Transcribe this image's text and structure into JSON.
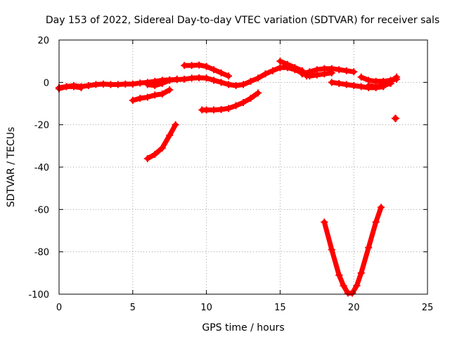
{
  "chart_data": {
    "type": "scatter",
    "title": "Day 153 of 2022, Sidereal Day-to-day VTEC variation (SDTVAR) for receiver sals",
    "xlabel": "GPS time / hours",
    "ylabel": "SDTVAR / TECUs",
    "xlim": [
      0,
      25
    ],
    "ylim": [
      -100,
      20
    ],
    "xticks": [
      0,
      5,
      10,
      15,
      20,
      25
    ],
    "yticks": [
      -100,
      -80,
      -60,
      -40,
      -20,
      0,
      20
    ],
    "grid": true,
    "marker": "plus",
    "color": "#ff0000",
    "series": [
      {
        "points": [
          [
            0,
            -2.5
          ],
          [
            0.5,
            -2
          ],
          [
            1,
            -1.5
          ],
          [
            1.5,
            -2
          ],
          [
            2,
            -1.5
          ],
          [
            2.5,
            -1
          ],
          [
            3,
            -0.8
          ],
          [
            3.5,
            -1
          ],
          [
            4,
            -1
          ],
          [
            4.5,
            -0.8
          ],
          [
            5,
            -0.8
          ],
          [
            5.5,
            -0.3
          ],
          [
            6,
            0
          ],
          [
            6.5,
            0.5
          ],
          [
            7,
            1
          ],
          [
            7.5,
            1.2
          ],
          [
            8,
            1.3
          ],
          [
            8.5,
            1.5
          ],
          [
            9,
            2
          ],
          [
            9.5,
            2.2
          ],
          [
            10,
            2
          ],
          [
            10.5,
            1
          ],
          [
            11,
            0
          ],
          [
            11.5,
            -1
          ],
          [
            12,
            -1.5
          ],
          [
            12.5,
            -1
          ],
          [
            13,
            0.5
          ],
          [
            13.5,
            2
          ],
          [
            14,
            4
          ],
          [
            14.5,
            5.5
          ],
          [
            15,
            7
          ],
          [
            15.5,
            7
          ],
          [
            16,
            6
          ],
          [
            16.5,
            4.5
          ]
        ]
      },
      {
        "points": [
          [
            0,
            -3
          ],
          [
            0.5,
            -2
          ],
          [
            1,
            -2
          ],
          [
            1.5,
            -2.5
          ]
        ]
      },
      {
        "points": [
          [
            6,
            -1
          ],
          [
            6.5,
            -1.5
          ],
          [
            7,
            -0.5
          ],
          [
            7.5,
            1
          ],
          [
            8,
            1.5
          ]
        ]
      },
      {
        "points": [
          [
            8.5,
            8
          ],
          [
            9,
            8
          ],
          [
            9.5,
            8.2
          ],
          [
            10,
            7.5
          ],
          [
            10.5,
            6
          ],
          [
            11,
            4.5
          ],
          [
            11.5,
            3
          ]
        ]
      },
      {
        "points": [
          [
            5,
            -8.5
          ],
          [
            5.5,
            -7.5
          ],
          [
            6,
            -7
          ],
          [
            6.5,
            -6
          ],
          [
            7,
            -5.5
          ],
          [
            7.5,
            -3.5
          ]
        ]
      },
      {
        "points": [
          [
            6,
            -36
          ],
          [
            6.5,
            -34
          ],
          [
            7,
            -31
          ],
          [
            7.5,
            -25
          ],
          [
            7.9,
            -20
          ]
        ]
      },
      {
        "points": [
          [
            9.7,
            -13
          ],
          [
            10,
            -13
          ],
          [
            10.5,
            -13
          ],
          [
            11,
            -12.8
          ],
          [
            11.5,
            -12.3
          ],
          [
            12,
            -11
          ],
          [
            12.5,
            -9.5
          ],
          [
            13,
            -7.5
          ],
          [
            13.5,
            -5
          ]
        ]
      },
      {
        "points": [
          [
            15,
            10
          ],
          [
            15.5,
            8.5
          ],
          [
            16,
            7
          ],
          [
            16.5,
            5.5
          ],
          [
            16.8,
            3
          ]
        ]
      },
      {
        "points": [
          [
            16.5,
            4
          ],
          [
            17,
            5
          ],
          [
            17.5,
            6
          ],
          [
            18,
            6.5
          ],
          [
            18.5,
            6.5
          ],
          [
            19,
            6
          ],
          [
            19.5,
            5.5
          ],
          [
            20,
            5
          ]
        ]
      },
      {
        "points": [
          [
            17,
            3
          ],
          [
            17.5,
            3.5
          ],
          [
            18,
            4
          ],
          [
            18.5,
            4.5
          ]
        ]
      },
      {
        "points": [
          [
            18.5,
            0
          ],
          [
            19,
            -0.5
          ],
          [
            19.5,
            -1
          ],
          [
            20,
            -1.5
          ],
          [
            20.5,
            -2
          ],
          [
            21,
            -2.5
          ],
          [
            21.5,
            -2.5
          ],
          [
            22,
            -2
          ],
          [
            22.5,
            0.5
          ],
          [
            22.9,
            2.5
          ]
        ]
      },
      {
        "points": [
          [
            20.5,
            2.5
          ],
          [
            21,
            1
          ],
          [
            21.5,
            0.5
          ],
          [
            22,
            0.5
          ],
          [
            22.5,
            1
          ],
          [
            22.9,
            1.5
          ]
        ]
      },
      {
        "points": [
          [
            21,
            -1.5
          ],
          [
            21.5,
            -2
          ],
          [
            22,
            -1.5
          ],
          [
            22.5,
            -0.5
          ]
        ]
      },
      {
        "points": [
          [
            22.8,
            -17
          ],
          [
            22.85,
            -17
          ]
        ]
      },
      {
        "points": [
          [
            18,
            -66
          ],
          [
            18.5,
            -79
          ],
          [
            19,
            -91
          ],
          [
            19.3,
            -96
          ],
          [
            19.6,
            -99.5
          ],
          [
            19.9,
            -99.5
          ],
          [
            20.2,
            -96
          ],
          [
            20.5,
            -90
          ],
          [
            21,
            -78
          ],
          [
            21.5,
            -66
          ],
          [
            21.85,
            -59
          ]
        ]
      }
    ]
  }
}
